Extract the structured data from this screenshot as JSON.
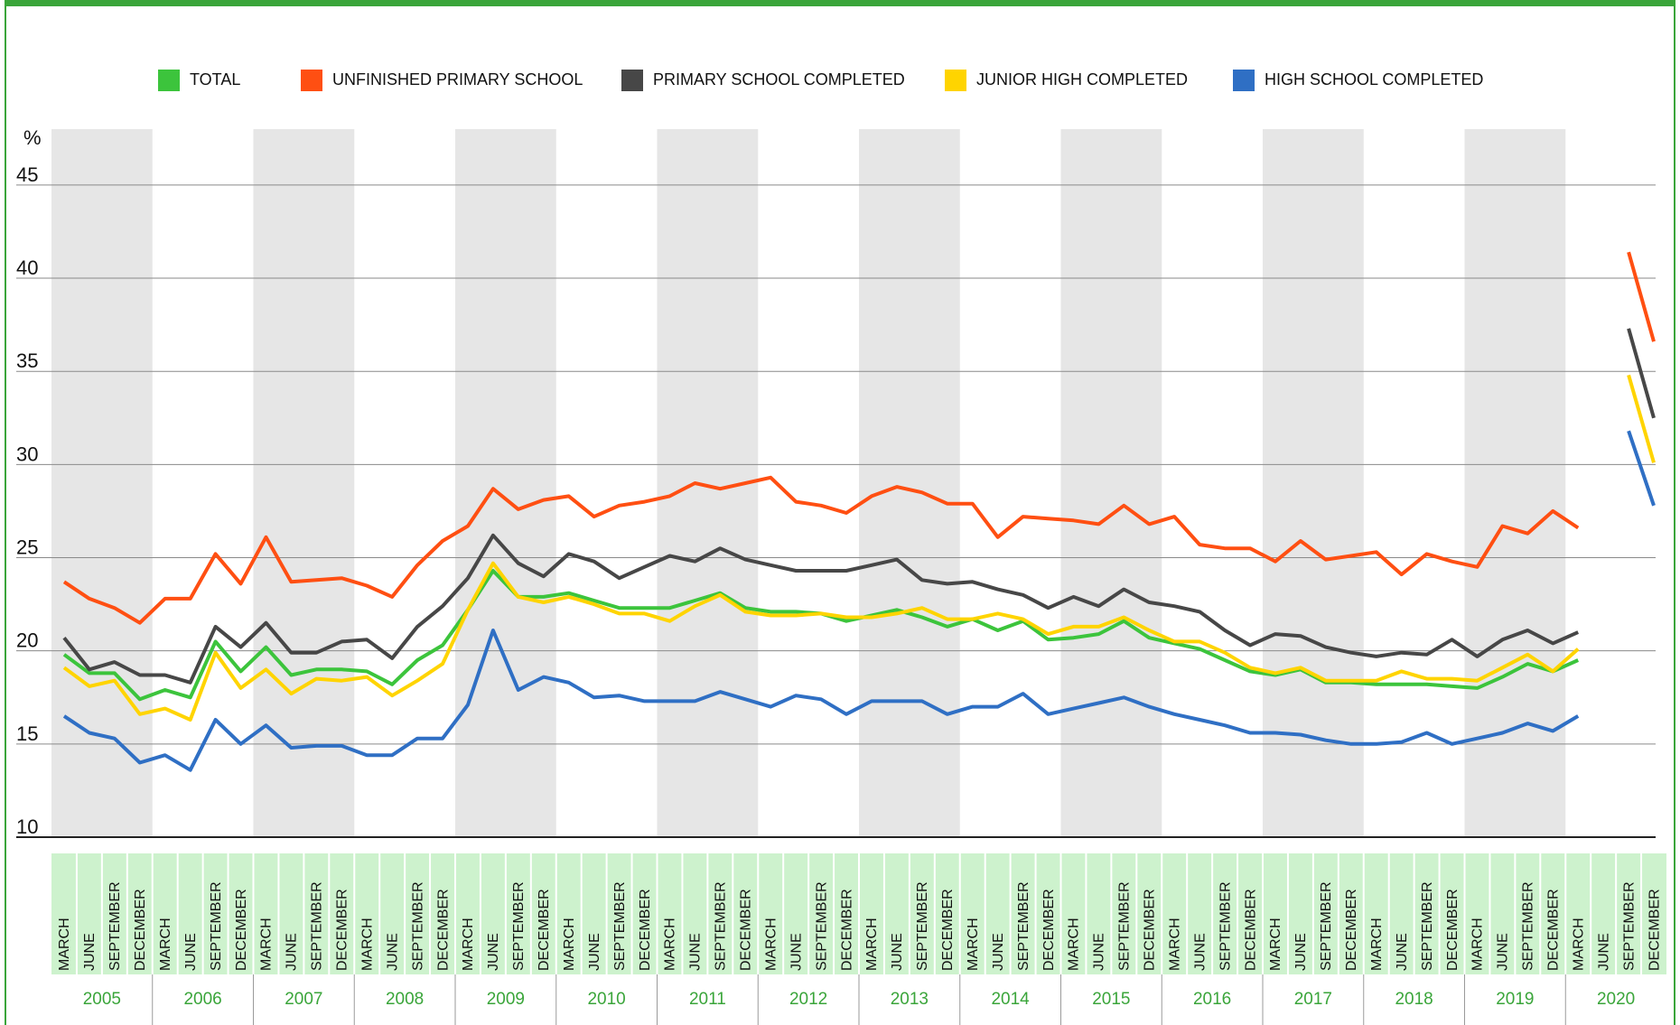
{
  "chart_data": {
    "type": "line",
    "y_label": "%",
    "legend": "top",
    "grid": true,
    "ylim": [
      10,
      48
    ],
    "yticks": [
      10,
      15,
      20,
      25,
      30,
      35,
      40,
      45
    ],
    "categories": [
      "MARCH",
      "JUNE",
      "SEPTEMBER",
      "DECEMBER",
      "MARCH",
      "JUNE",
      "SEPTEMBER",
      "DECEMBER",
      "MARCH",
      "JUNE",
      "SEPTEMBER",
      "DECEMBER",
      "MARCH",
      "JUNE",
      "SEPTEMBER",
      "DECEMBER",
      "MARCH",
      "JUNE",
      "SEPTEMBER",
      "DECEMBER",
      "MARCH",
      "JUNE",
      "SEPTEMBER",
      "DECEMBER",
      "MARCH",
      "JUNE",
      "SEPTEMBER",
      "DECEMBER",
      "MARCH",
      "JUNE",
      "SEPTEMBER",
      "DECEMBER",
      "MARCH",
      "JUNE",
      "SEPTEMBER",
      "DECEMBER",
      "MARCH",
      "JUNE",
      "SEPTEMBER",
      "DECEMBER",
      "MARCH",
      "JUNE",
      "SEPTEMBER",
      "DECEMBER",
      "MARCH",
      "JUNE",
      "SEPTEMBER",
      "DECEMBER",
      "MARCH",
      "JUNE",
      "SEPTEMBER",
      "DECEMBER",
      "MARCH",
      "JUNE",
      "SEPTEMBER",
      "DECEMBER",
      "MARCH",
      "JUNE",
      "SEPTEMBER",
      "DECEMBER",
      "MARCH",
      "JUNE",
      "SEPTEMBER",
      "DECEMBER"
    ],
    "year_groups": [
      "2005",
      "2006",
      "2007",
      "2008",
      "2009",
      "2010",
      "2011",
      "2012",
      "2013",
      "2014",
      "2015",
      "2016",
      "2017",
      "2018",
      "2019",
      "2020"
    ],
    "series": [
      {
        "name": "TOTAL",
        "color": "#3cc43c",
        "values": [
          19.8,
          18.8,
          18.8,
          17.4,
          17.9,
          17.5,
          20.5,
          18.9,
          20.2,
          18.7,
          19.0,
          19.0,
          18.9,
          18.2,
          19.5,
          20.3,
          22.2,
          24.3,
          22.9,
          22.9,
          23.1,
          22.7,
          22.3,
          22.3,
          22.3,
          22.7,
          23.1,
          22.3,
          22.1,
          22.1,
          22.0,
          21.6,
          21.9,
          22.2,
          21.8,
          21.3,
          21.7,
          21.1,
          21.6,
          20.6,
          20.7,
          20.9,
          21.6,
          20.7,
          20.4,
          20.1,
          19.5,
          18.9,
          18.7,
          19.0,
          18.3,
          18.3,
          18.2,
          18.2,
          18.2,
          18.1,
          18.0,
          18.6,
          19.3,
          18.9,
          19.5,
          null,
          null,
          null
        ]
      },
      {
        "name": "UNFINISHED PRIMARY SCHOOL",
        "color": "#ff4f12",
        "values": [
          23.7,
          22.8,
          22.3,
          21.5,
          22.8,
          22.8,
          25.2,
          23.6,
          26.1,
          23.7,
          23.8,
          23.9,
          23.5,
          22.9,
          24.6,
          25.9,
          26.7,
          28.7,
          27.6,
          28.1,
          28.3,
          27.2,
          27.8,
          28.0,
          28.3,
          29.0,
          28.7,
          29.0,
          29.3,
          28.0,
          27.8,
          27.4,
          28.3,
          28.8,
          28.5,
          27.9,
          27.9,
          26.1,
          27.2,
          27.1,
          27.0,
          26.8,
          27.8,
          26.8,
          27.2,
          25.7,
          25.5,
          25.5,
          24.8,
          25.9,
          24.9,
          25.1,
          25.3,
          24.1,
          25.2,
          24.8,
          24.5,
          26.7,
          26.3,
          27.5,
          26.6,
          null,
          41.4,
          36.6
        ]
      },
      {
        "name": "PRIMARY SCHOOL COMPLETED",
        "color": "#474747",
        "values": [
          20.7,
          19.0,
          19.4,
          18.7,
          18.7,
          18.3,
          21.3,
          20.2,
          21.5,
          19.9,
          19.9,
          20.5,
          20.6,
          19.6,
          21.3,
          22.4,
          23.9,
          26.2,
          24.7,
          24.0,
          25.2,
          24.8,
          23.9,
          24.5,
          25.1,
          24.8,
          25.5,
          24.9,
          24.6,
          24.3,
          24.3,
          24.3,
          24.6,
          24.9,
          23.8,
          23.6,
          23.7,
          23.3,
          23.0,
          22.3,
          22.9,
          22.4,
          23.3,
          22.6,
          22.4,
          22.1,
          21.1,
          20.3,
          20.9,
          20.8,
          20.2,
          19.9,
          19.7,
          19.9,
          19.8,
          20.6,
          19.7,
          20.6,
          21.1,
          20.4,
          21.0,
          null,
          37.3,
          32.5
        ]
      },
      {
        "name": "JUNIOR HIGH COMPLETED",
        "color": "#ffd400",
        "values": [
          19.1,
          18.1,
          18.4,
          16.6,
          16.9,
          16.3,
          19.9,
          18.0,
          19.0,
          17.7,
          18.5,
          18.4,
          18.6,
          17.6,
          18.4,
          19.3,
          22.2,
          24.7,
          22.9,
          22.6,
          22.9,
          22.5,
          22.0,
          22.0,
          21.6,
          22.4,
          23.0,
          22.1,
          21.9,
          21.9,
          22.0,
          21.8,
          21.8,
          22.0,
          22.3,
          21.7,
          21.7,
          22.0,
          21.7,
          20.9,
          21.3,
          21.3,
          21.8,
          21.1,
          20.5,
          20.5,
          19.9,
          19.1,
          18.8,
          19.1,
          18.4,
          18.4,
          18.4,
          18.9,
          18.5,
          18.5,
          18.4,
          19.1,
          19.8,
          18.9,
          20.1,
          null,
          34.8,
          30.1
        ]
      },
      {
        "name": "HIGH SCHOOL COMPLETED",
        "color": "#2f6fc4",
        "values": [
          16.5,
          15.6,
          15.3,
          14.0,
          14.4,
          13.6,
          16.3,
          15.0,
          16.0,
          14.8,
          14.9,
          14.9,
          14.4,
          14.4,
          15.3,
          15.3,
          17.1,
          21.1,
          17.9,
          18.6,
          18.3,
          17.5,
          17.6,
          17.3,
          17.3,
          17.3,
          17.8,
          17.4,
          17.0,
          17.6,
          17.4,
          16.6,
          17.3,
          17.3,
          17.3,
          16.6,
          17.0,
          17.0,
          17.7,
          16.6,
          16.9,
          17.2,
          17.5,
          17.0,
          16.6,
          16.3,
          16.0,
          15.6,
          15.6,
          15.5,
          15.2,
          15.0,
          15.0,
          15.1,
          15.6,
          15.0,
          15.3,
          15.6,
          16.1,
          15.7,
          16.5,
          null,
          31.8,
          27.8
        ]
      }
    ]
  }
}
